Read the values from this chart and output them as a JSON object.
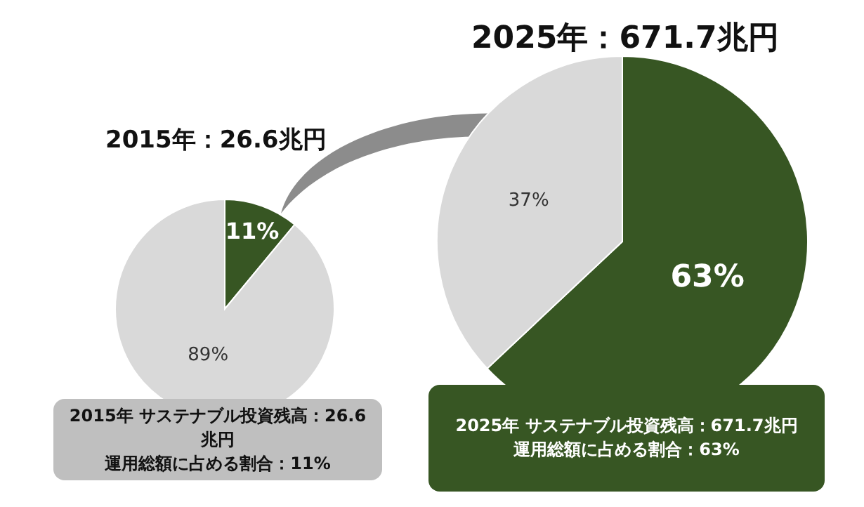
{
  "chart_data": [
    {
      "type": "pie",
      "title": "2015年：26.6兆円",
      "categories": [
        null,
        null
      ],
      "values": [
        11,
        89
      ],
      "colors": [
        "#375623",
        "#d9d9d9"
      ],
      "value_labels": [
        "11%",
        "89%"
      ],
      "annotations": [
        "2015年 サステナブル投資残高：26.6兆円",
        "運用総額に占める割合：11%"
      ]
    },
    {
      "type": "pie",
      "title": "2025年：671.7兆円",
      "categories": [
        null,
        null
      ],
      "values": [
        63,
        37
      ],
      "colors": [
        "#375623",
        "#d9d9d9"
      ],
      "value_labels": [
        "63%",
        "37%"
      ],
      "annotations": [
        "2025年 サステナブル投資残高：671.7兆円",
        "運用総額に占める割合：63%"
      ]
    }
  ]
}
